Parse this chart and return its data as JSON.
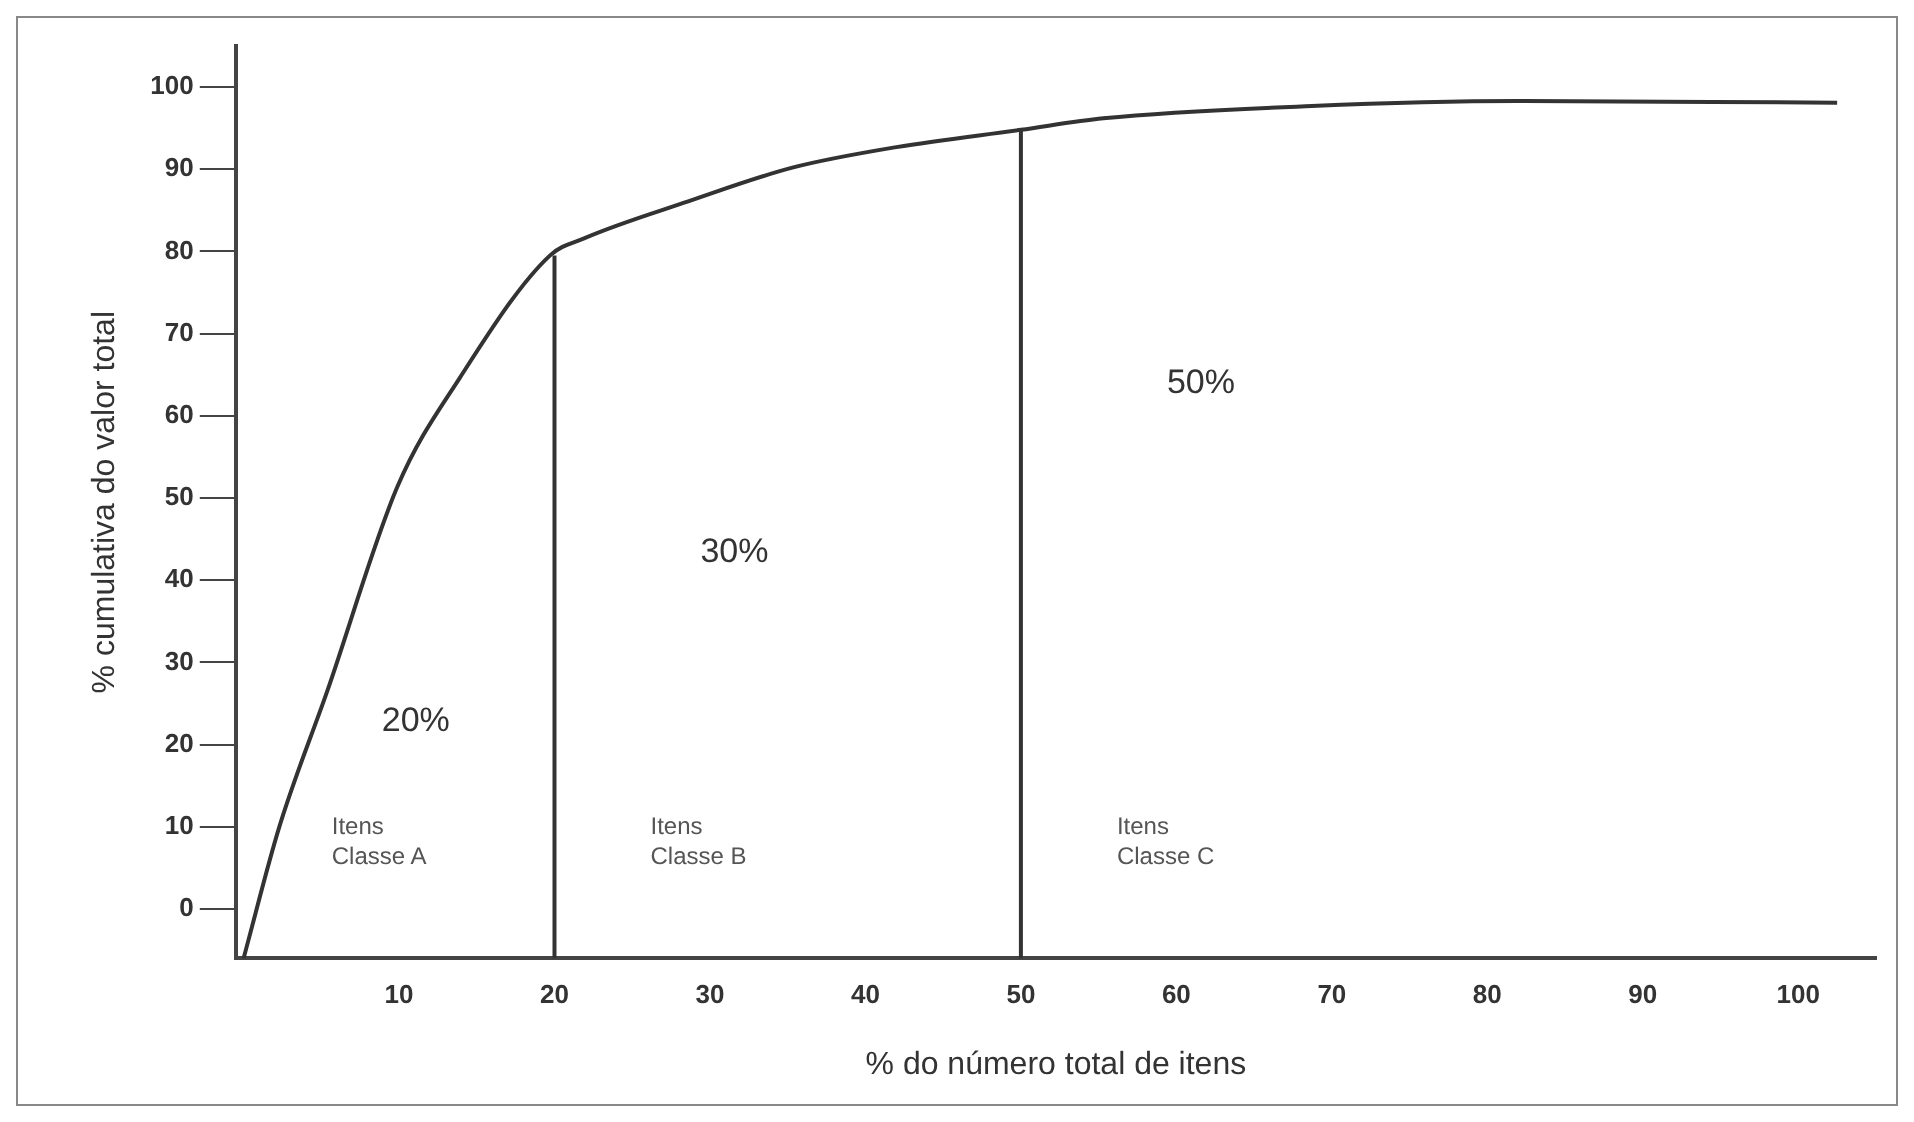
{
  "chart_data": {
    "type": "line",
    "xlabel": "% do número total de itens",
    "ylabel": "% cumulativa do valor total",
    "xlim": [
      -0.5,
      105
    ],
    "ylim": [
      -6,
      105
    ],
    "xticks": [
      10,
      20,
      30,
      40,
      50,
      60,
      70,
      80,
      90,
      100
    ],
    "yticks": [
      0,
      10,
      20,
      30,
      40,
      50,
      60,
      70,
      80,
      90,
      100
    ],
    "grid": false,
    "legend": false,
    "marker": "none",
    "line_style": "solid",
    "series": [
      {
        "color": "#333333",
        "x": [
          0,
          2.3,
          5.4,
          9.9,
          13.9,
          19.7,
          21.9,
          28.6,
          35.3,
          42,
          50,
          55.3,
          68.7,
          82,
          102.5
        ],
        "values": [
          -6,
          10,
          26.6,
          51.4,
          64.6,
          79.5,
          81.6,
          86.1,
          90.2,
          92.7,
          94.8,
          96.2,
          97.7,
          98.3,
          98.1
        ]
      },
      {
        "color": "#333333",
        "x": [
          20,
          20
        ],
        "values": [
          -6,
          79.5
        ]
      },
      {
        "color": "#333333",
        "x": [
          50,
          50
        ],
        "values": [
          -6,
          94.8
        ]
      }
    ],
    "annotations": [
      "20%",
      "30%",
      "50%",
      "Itens Classe A",
      "Itens Classe B",
      "Itens Classe C"
    ]
  }
}
